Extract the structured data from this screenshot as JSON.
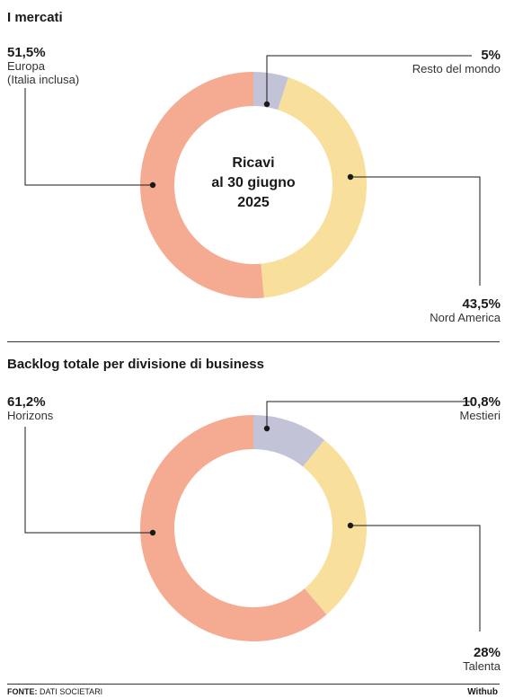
{
  "footer": {
    "source_key": "FONTE:",
    "source_value": "DATI SOCIETARI",
    "brand": "Withub"
  },
  "chart_data": [
    {
      "type": "pie",
      "title": "I mercati",
      "center_label": [
        "Ricavi",
        "al 30 giugno",
        "2025"
      ],
      "slices": [
        {
          "value": 5,
          "pct_label": "5%",
          "label": "Resto del mondo",
          "label_line2": "",
          "color": "#c3c3d8"
        },
        {
          "value": 43.5,
          "pct_label": "43,5%",
          "label": "Nord America",
          "label_line2": "",
          "color": "#f8e09c"
        },
        {
          "value": 51.5,
          "pct_label": "51,5%",
          "label": "Europa",
          "label_line2": "(Italia inclusa)",
          "color": "#f5ab92"
        }
      ]
    },
    {
      "type": "pie",
      "title": "Backlog totale per divisione di business",
      "center_label": [],
      "slices": [
        {
          "value": 10.8,
          "pct_label": "10,8%",
          "label": "Mestieri",
          "label_line2": "",
          "color": "#c3c3d8"
        },
        {
          "value": 28,
          "pct_label": "28%",
          "label": "Talenta",
          "label_line2": "",
          "color": "#f8e09c"
        },
        {
          "value": 61.2,
          "pct_label": "61,2%",
          "label": "Horizons",
          "label_line2": "",
          "color": "#f5ab92"
        }
      ]
    }
  ]
}
